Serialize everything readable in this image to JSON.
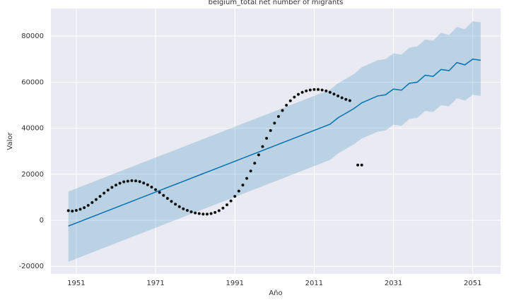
{
  "chart_data": {
    "type": "forecast",
    "title": "belgium_total net number of migrants",
    "x_label": "Año",
    "y_label": "Valor",
    "xlim": [
      1944.6,
      2058
    ],
    "ylim": [
      -23300,
      92000
    ],
    "xticks": [
      1951,
      1971,
      1991,
      2011,
      2031,
      2051
    ],
    "yticks": [
      -20000,
      0,
      20000,
      40000,
      60000,
      80000
    ],
    "grid": true,
    "forecast": {
      "color": "#0072b2",
      "band_color": "#0072b2",
      "x": [
        1949,
        1951,
        1953,
        1955,
        1957,
        1959,
        1961,
        1963,
        1965,
        1967,
        1969,
        1971,
        1973,
        1975,
        1977,
        1979,
        1981,
        1983,
        1985,
        1987,
        1989,
        1991,
        1993,
        1995,
        1997,
        1999,
        2001,
        2003,
        2005,
        2007,
        2009,
        2011,
        2013,
        2015,
        2017,
        2019,
        2021,
        2023,
        2025,
        2027,
        2029,
        2031,
        2033,
        2035,
        2037,
        2039,
        2041,
        2043,
        2045,
        2047,
        2049,
        2051,
        2053
      ],
      "values": [
        -2500,
        -1160,
        180,
        1520,
        2860,
        4200,
        5540,
        6880,
        8220,
        9560,
        10900,
        12240,
        13580,
        14920,
        16260,
        17600,
        18940,
        20280,
        21620,
        22960,
        24300,
        25640,
        26980,
        28320,
        29660,
        31000,
        32340,
        33680,
        35020,
        36360,
        37700,
        39040,
        40380,
        41720,
        44500,
        46500,
        48500,
        51000,
        52500,
        54000,
        54500,
        57000,
        56500,
        59500,
        60000,
        63000,
        62500,
        65500,
        65000,
        68500,
        67500,
        70000,
        69500
      ],
      "lower": [
        -18000,
        -16660,
        -15320,
        -13980,
        -12640,
        -11300,
        -9960,
        -8620,
        -7280,
        -5940,
        -4600,
        -3260,
        -1920,
        -580,
        760,
        2100,
        3440,
        4780,
        6120,
        7460,
        8800,
        10140,
        11480,
        12820,
        14160,
        15500,
        16840,
        18180,
        19520,
        20860,
        22200,
        23540,
        24880,
        26220,
        29000,
        31000,
        33000,
        35500,
        37000,
        38500,
        39000,
        41500,
        41000,
        44000,
        44500,
        47500,
        47000,
        50000,
        49500,
        53000,
        52000,
        54500,
        54000
      ],
      "upper": [
        12500,
        13840,
        15180,
        16520,
        17860,
        19200,
        20540,
        21880,
        23220,
        24560,
        25900,
        27240,
        28580,
        29920,
        31260,
        32600,
        33940,
        35280,
        36620,
        37960,
        39300,
        40640,
        41980,
        43320,
        44660,
        46000,
        47340,
        48680,
        50020,
        51360,
        52700,
        54040,
        55380,
        56720,
        59500,
        61500,
        63500,
        66500,
        68000,
        69500,
        70000,
        72500,
        72000,
        75000,
        75500,
        78500,
        78000,
        81500,
        80500,
        84000,
        83000,
        86500,
        86000
      ]
    },
    "observed": {
      "color": "#111111",
      "x": [
        1949,
        1950,
        1951,
        1952,
        1953,
        1954,
        1955,
        1956,
        1957,
        1958,
        1959,
        1960,
        1961,
        1962,
        1963,
        1964,
        1965,
        1966,
        1967,
        1968,
        1969,
        1970,
        1971,
        1972,
        1973,
        1974,
        1975,
        1976,
        1977,
        1978,
        1979,
        1980,
        1981,
        1982,
        1983,
        1984,
        1985,
        1986,
        1987,
        1988,
        1989,
        1990,
        1991,
        1992,
        1993,
        1994,
        1995,
        1996,
        1997,
        1998,
        1999,
        2000,
        2001,
        2002,
        2003,
        2004,
        2005,
        2006,
        2007,
        2008,
        2009,
        2010,
        2011,
        2012,
        2013,
        2014,
        2015,
        2016,
        2017,
        2018,
        2019,
        2020,
        2022,
        2023
      ],
      "values": [
        4200,
        4000,
        4300,
        4800,
        5500,
        6500,
        7700,
        9000,
        10400,
        11800,
        13100,
        14300,
        15300,
        16100,
        16700,
        17000,
        17200,
        17100,
        16800,
        16200,
        15400,
        14400,
        13300,
        12100,
        10800,
        9500,
        8200,
        7000,
        5900,
        5000,
        4300,
        3700,
        3200,
        2900,
        2700,
        2700,
        2900,
        3400,
        4200,
        5300,
        6700,
        8400,
        10400,
        12700,
        15300,
        18200,
        21400,
        24800,
        28400,
        32000,
        35600,
        39000,
        42200,
        45100,
        47700,
        50000,
        51900,
        53500,
        54700,
        55600,
        56200,
        56600,
        56800,
        56800,
        56600,
        56200,
        55600,
        54800,
        54000,
        53200,
        52500,
        52000,
        24000,
        24000
      ]
    }
  }
}
